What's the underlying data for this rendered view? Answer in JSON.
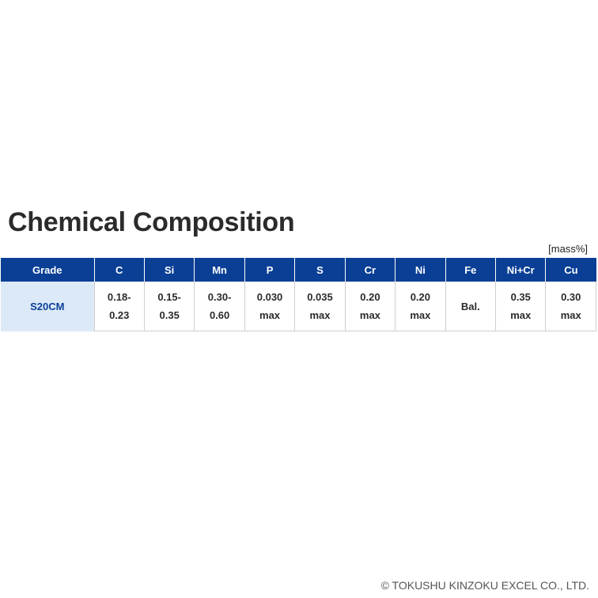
{
  "title": "Chemical Composition",
  "unit": "[mass%]",
  "table": {
    "headers": [
      "Grade",
      "C",
      "Si",
      "Mn",
      "P",
      "S",
      "Cr",
      "Ni",
      "Fe",
      "Ni+Cr",
      "Cu"
    ],
    "row": {
      "grade": "S20CM",
      "cells": [
        [
          "0.18-",
          "0.23"
        ],
        [
          "0.15-",
          "0.35"
        ],
        [
          "0.30-",
          "0.60"
        ],
        [
          "0.030",
          "max"
        ],
        [
          "0.035",
          "max"
        ],
        [
          "0.20",
          "max"
        ],
        [
          "0.20",
          "max"
        ],
        [
          "Bal.",
          ""
        ],
        [
          "0.35",
          "max"
        ],
        [
          "0.30",
          "max"
        ]
      ]
    }
  },
  "colors": {
    "header_bg": "#0a3f95",
    "grade_bg": "#dce9f7",
    "grade_text": "#0a3f95"
  },
  "footer": "© TOKUSHU KINZOKU EXCEL CO., LTD."
}
